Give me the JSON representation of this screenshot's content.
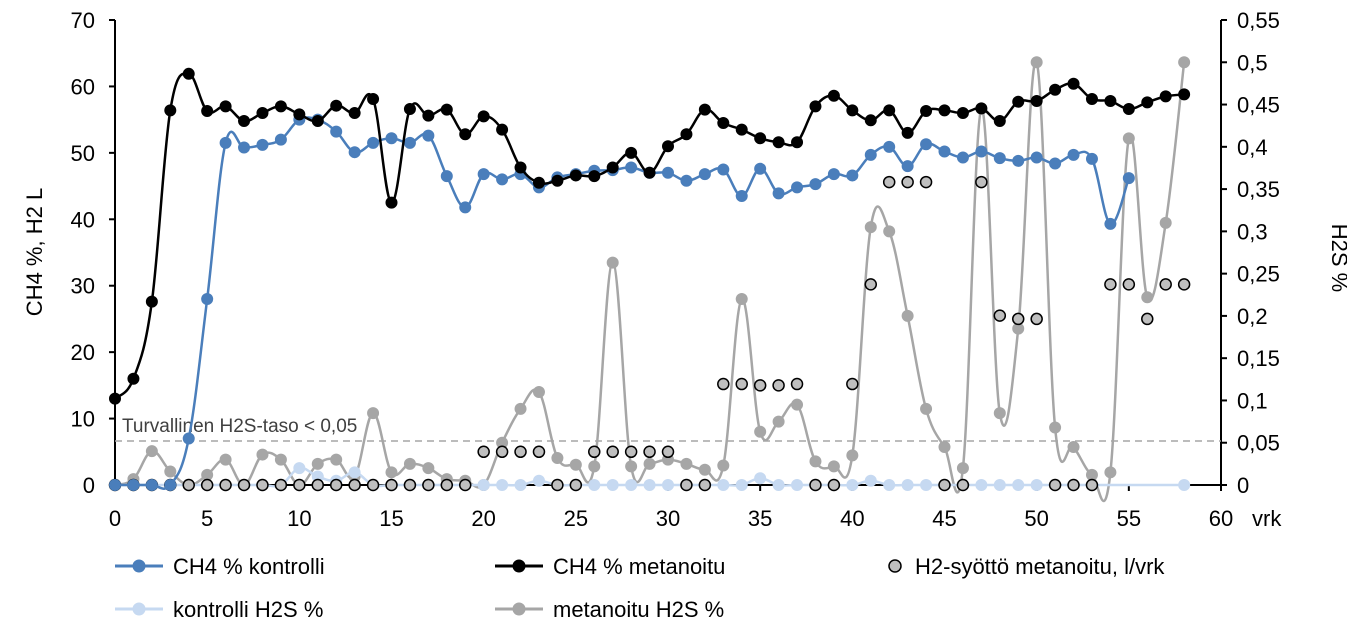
{
  "chart_data": {
    "type": "line",
    "title": "",
    "xlabel": "vrk",
    "ylabel": "CH4 %, H2 L",
    "y2label": "H2S %",
    "xlim": [
      0,
      60
    ],
    "ylim": [
      0,
      70
    ],
    "y2lim": [
      0,
      0.55
    ],
    "x_ticks": [
      "0",
      "5",
      "10",
      "15",
      "20",
      "25",
      "30",
      "35",
      "40",
      "45",
      "50",
      "55",
      "60"
    ],
    "y_ticks": [
      "0",
      "10",
      "20",
      "30",
      "40",
      "50",
      "60",
      "70"
    ],
    "y2_ticks": [
      "0",
      "0,05",
      "0,1",
      "0,15",
      "0,2",
      "0,25",
      "0,3",
      "0,35",
      "0,4",
      "0,45",
      "0,5",
      "0,55"
    ],
    "grid": false,
    "legend_position": "bottom",
    "annotation": {
      "text": "Turvallinen H2S-taso < 0,05",
      "y2": 0.052
    },
    "colors": {
      "ch4_kontrolli": "#4a7ebb",
      "ch4_metanoitu": "#000000",
      "h2_feed": "#bfbfbf",
      "kontrolli_h2s": "#c6d9f1",
      "metanoitu_h2s": "#a6a6a6"
    },
    "series": [
      {
        "name": "CH4 % kontrolli",
        "axis": "left",
        "style": "line",
        "color": "#4a7ebb",
        "x": [
          0,
          1,
          2,
          3,
          4,
          5,
          6,
          7,
          8,
          9,
          10,
          11,
          12,
          13,
          14,
          15,
          16,
          17,
          18,
          19,
          20,
          21,
          22,
          23,
          24,
          25,
          26,
          27,
          28,
          29,
          30,
          31,
          32,
          33,
          34,
          35,
          36,
          37,
          38,
          39,
          40,
          41,
          42,
          43,
          44,
          45,
          46,
          47,
          48,
          49,
          50,
          51,
          52,
          53,
          54,
          55
        ],
        "y": [
          0,
          0,
          0,
          0,
          7,
          28,
          51.5,
          50.8,
          51.2,
          52,
          55,
          55,
          53.2,
          50.1,
          51.5,
          52.2,
          51.5,
          52.6,
          46.5,
          41.8,
          46.8,
          46,
          46.8,
          44.8,
          46.3,
          46.8,
          47.3,
          47.4,
          47.8,
          47,
          47,
          45.8,
          46.8,
          47.5,
          43.5,
          47.6,
          43.9,
          44.8,
          45.3,
          46.8,
          46.6,
          49.7,
          50.9,
          48,
          51.3,
          50.2,
          49.3,
          50.2,
          49.2,
          48.8,
          49.3,
          48.4,
          49.7,
          49.1,
          39.3,
          46.2
        ]
      },
      {
        "name": "CH4 %  metanoitu",
        "axis": "left",
        "style": "line",
        "color": "#000000",
        "x": [
          0,
          1,
          2,
          3,
          4,
          5,
          6,
          7,
          8,
          9,
          10,
          11,
          12,
          13,
          14,
          15,
          16,
          17,
          18,
          19,
          20,
          21,
          22,
          23,
          24,
          25,
          26,
          27,
          28,
          29,
          30,
          31,
          32,
          33,
          34,
          35,
          36,
          37,
          38,
          39,
          40,
          41,
          42,
          43,
          44,
          45,
          46,
          47,
          48,
          49,
          50,
          51,
          52,
          53,
          54,
          55,
          56,
          57,
          58
        ],
        "y": [
          13,
          16,
          27.6,
          56.4,
          61.9,
          56.3,
          57,
          54.8,
          56,
          57,
          55.8,
          54.8,
          57.1,
          56,
          58.1,
          42.5,
          56.6,
          55.6,
          56.5,
          52.8,
          55.5,
          53.5,
          47.8,
          45.5,
          45.8,
          46.6,
          46.5,
          47.8,
          50,
          47,
          51,
          52.8,
          56.5,
          54.5,
          53.5,
          52.2,
          51.6,
          51.6,
          57,
          58.6,
          56.4,
          54.9,
          56.4,
          53,
          56.3,
          56.4,
          56,
          56.7,
          54.8,
          57.7,
          57.8,
          59.5,
          60.4,
          58.1,
          57.8,
          56.6,
          57.6,
          58.5,
          58.8
        ]
      },
      {
        "name": "H2-syöttö metanoitu, l/vrk",
        "axis": "left",
        "style": "marker",
        "color": "#bfbfbf",
        "x": [
          0,
          1,
          2,
          3,
          4,
          5,
          6,
          7,
          8,
          9,
          10,
          11,
          12,
          13,
          14,
          15,
          16,
          17,
          18,
          19,
          20,
          21,
          22,
          23,
          24,
          25,
          26,
          27,
          28,
          29,
          30,
          31,
          32,
          33,
          34,
          35,
          36,
          37,
          38,
          39,
          40,
          41,
          42,
          43,
          44,
          45,
          46,
          47,
          48,
          49,
          50,
          51,
          52,
          53,
          54,
          55,
          56,
          57,
          58
        ],
        "y": [
          0,
          0,
          0,
          0,
          0,
          0,
          0,
          0,
          0,
          0,
          0,
          0,
          0,
          0,
          0,
          0,
          0,
          0,
          0,
          0,
          5,
          5,
          5,
          5,
          0,
          0,
          5,
          5,
          5,
          5,
          5,
          0,
          0,
          15.2,
          15.2,
          15,
          15,
          15.2,
          0,
          0,
          15.2,
          30.2,
          45.6,
          45.6,
          45.6,
          0,
          0,
          45.6,
          25.5,
          25,
          25,
          0,
          0,
          0,
          30.2,
          30.2,
          25,
          30.2,
          30.2
        ]
      },
      {
        "name": "kontrolli H2S %",
        "axis": "right",
        "style": "line",
        "color": "#c6d9f1",
        "x": [
          0,
          1,
          2,
          3,
          4,
          5,
          6,
          7,
          8,
          9,
          10,
          11,
          12,
          13,
          14,
          15,
          16,
          17,
          18,
          19,
          20,
          21,
          22,
          23,
          24,
          25,
          26,
          27,
          28,
          29,
          30,
          31,
          32,
          33,
          34,
          35,
          36,
          37,
          38,
          39,
          40,
          41,
          42,
          43,
          44,
          45,
          46,
          47,
          48,
          49,
          50,
          51,
          52,
          53,
          58
        ],
        "y": [
          0,
          0,
          0,
          0,
          0,
          0,
          0,
          0,
          0,
          0,
          0.02,
          0.01,
          0.005,
          0.015,
          0,
          0,
          0,
          0,
          0,
          0,
          0,
          0,
          0,
          0.005,
          0,
          0,
          0,
          0,
          0,
          0,
          0,
          0,
          0,
          0,
          0,
          0.008,
          0,
          0,
          0,
          0,
          0,
          0.005,
          0,
          0,
          0,
          0,
          0,
          0,
          0,
          0,
          0,
          0,
          0,
          0,
          0
        ]
      },
      {
        "name": "metanoitu H2S %",
        "axis": "right",
        "style": "line",
        "color": "#a6a6a6",
        "x": [
          0,
          1,
          2,
          3,
          4,
          5,
          6,
          7,
          8,
          9,
          10,
          11,
          12,
          13,
          14,
          15,
          16,
          17,
          18,
          19,
          20,
          21,
          22,
          23,
          24,
          25,
          26,
          27,
          28,
          29,
          30,
          31,
          32,
          33,
          34,
          35,
          36,
          37,
          38,
          39,
          40,
          41,
          42,
          43,
          44,
          45,
          46,
          47,
          48,
          49,
          50,
          51,
          52,
          53,
          54,
          55,
          56,
          57,
          58
        ],
        "y": [
          0,
          0.007,
          0.04,
          0.016,
          0,
          0.012,
          0.03,
          0,
          0.036,
          0.03,
          0,
          0.025,
          0.03,
          0.01,
          0.085,
          0.015,
          0.025,
          0.02,
          0.007,
          0.005,
          0,
          0.05,
          0.09,
          0.11,
          0.032,
          0.024,
          0.022,
          0.263,
          0.022,
          0.025,
          0.03,
          0.025,
          0.018,
          0.023,
          0.22,
          0.063,
          0.075,
          0.095,
          0.028,
          0.022,
          0.035,
          0.305,
          0.3,
          0.2,
          0.09,
          0.045,
          0.02,
          0.445,
          0.085,
          0.185,
          0.5,
          0.068,
          0.045,
          0.012,
          0.015,
          0.41,
          0.222,
          0.31,
          0.5
        ]
      }
    ]
  }
}
